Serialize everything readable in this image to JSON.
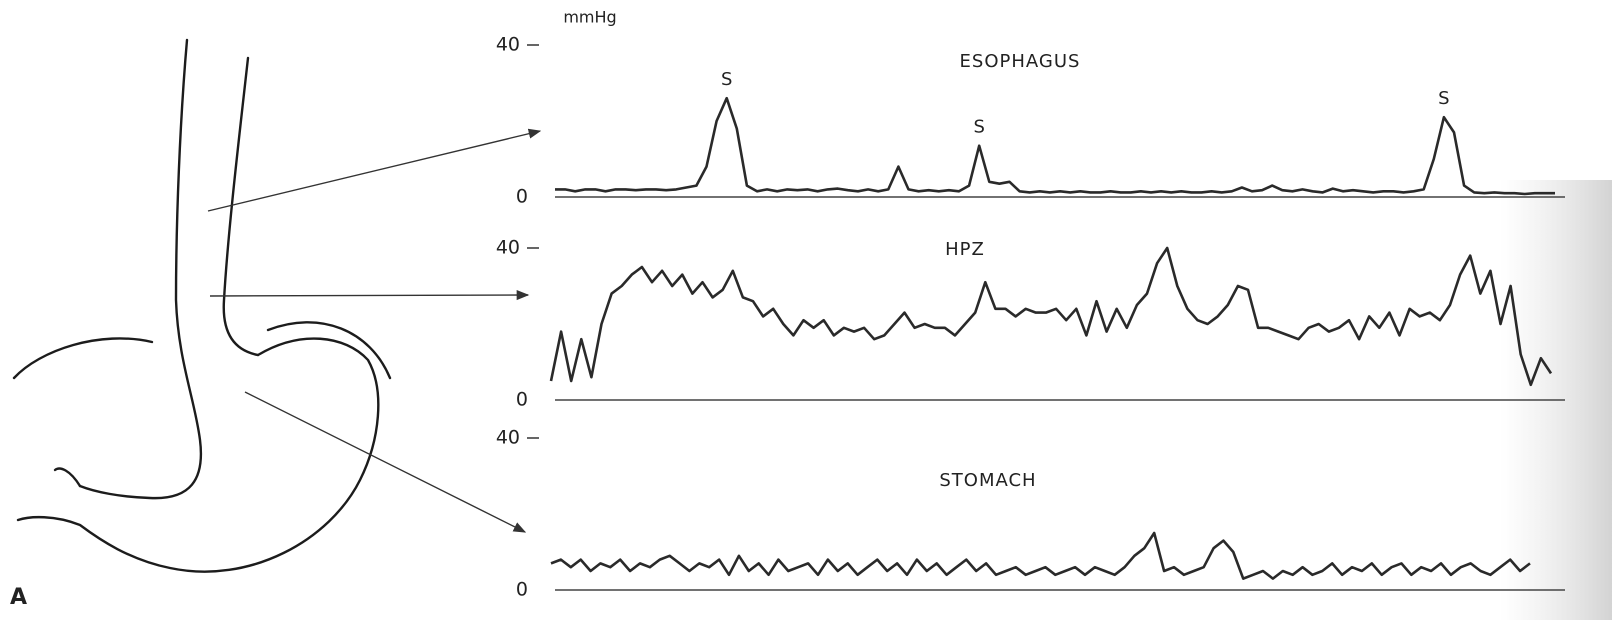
{
  "panel_label": "A",
  "chart_data": [
    {
      "type": "line",
      "title": "ESOPHAGUS",
      "ylabel": "mmHg",
      "ylim": [
        0,
        40
      ],
      "yticks": [
        0,
        40
      ],
      "annotations": [
        "S",
        "S",
        "S"
      ],
      "values": [
        2,
        2,
        1.5,
        2,
        2,
        1.5,
        2,
        2,
        1.8,
        2,
        2,
        1.8,
        2,
        2.5,
        3,
        8,
        20,
        26,
        18,
        3,
        1.5,
        2,
        1.5,
        2,
        1.8,
        2,
        1.5,
        2,
        2.2,
        1.8,
        1.5,
        2,
        1.5,
        2,
        8,
        2,
        1.5,
        1.8,
        1.5,
        1.8,
        1.5,
        3,
        13.5,
        4,
        3.5,
        4,
        1.5,
        1.2,
        1.5,
        1.2,
        1.5,
        1.2,
        1.5,
        1.2,
        1.2,
        1.5,
        1.2,
        1.2,
        1.5,
        1.2,
        1.5,
        1.2,
        1.5,
        1.2,
        1.2,
        1.5,
        1.2,
        1.5,
        2.5,
        1.5,
        1.8,
        3,
        1.8,
        1.5,
        2,
        1.5,
        1.2,
        2.2,
        1.5,
        1.8,
        1.5,
        1.2,
        1.5,
        1.5,
        1.2,
        1.5,
        2,
        10,
        21,
        17,
        3,
        1.2,
        1,
        1.2,
        1,
        1,
        0.8,
        1,
        1,
        1
      ]
    },
    {
      "type": "line",
      "title": "HPZ",
      "ylim": [
        0,
        40
      ],
      "yticks": [
        0,
        40
      ],
      "values": [
        5,
        18,
        5,
        16,
        6,
        20,
        28,
        30,
        33,
        35,
        31,
        34,
        30,
        33,
        28,
        31,
        27,
        29,
        34,
        27,
        26,
        22,
        24,
        20,
        17,
        21,
        19,
        21,
        17,
        19,
        18,
        19,
        16,
        17,
        20,
        23,
        19,
        20,
        19,
        19,
        17,
        20,
        23,
        31,
        24,
        24,
        22,
        24,
        23,
        23,
        24,
        21,
        24,
        17,
        26,
        18,
        24,
        19,
        25,
        28,
        36,
        40,
        30,
        24,
        21,
        20,
        22,
        25,
        30,
        29,
        19,
        19,
        18,
        17,
        16,
        19,
        20,
        18,
        19,
        21,
        16,
        22,
        19,
        23,
        17,
        24,
        22,
        23,
        21,
        25,
        33,
        38,
        28,
        34,
        20,
        30,
        12,
        4,
        11,
        7
      ]
    },
    {
      "type": "line",
      "title": "STOMACH",
      "ylim": [
        0,
        40
      ],
      "yticks": [
        0,
        40
      ],
      "values": [
        7,
        8,
        6,
        8,
        5,
        7,
        6,
        8,
        5,
        7,
        6,
        8,
        9,
        7,
        5,
        7,
        6,
        8,
        4,
        9,
        5,
        7,
        4,
        8,
        5,
        6,
        7,
        4,
        8,
        5,
        7,
        4,
        6,
        8,
        5,
        7,
        4,
        8,
        5,
        7,
        4,
        6,
        8,
        5,
        7,
        4,
        5,
        6,
        4,
        5,
        6,
        4,
        5,
        6,
        4,
        6,
        5,
        4,
        6,
        9,
        11,
        15,
        5,
        6,
        4,
        5,
        6,
        11,
        13,
        10,
        3,
        4,
        5,
        3,
        5,
        4,
        6,
        4,
        5,
        7,
        4,
        6,
        5,
        7,
        4,
        6,
        7,
        4,
        6,
        5,
        7,
        4,
        6,
        7,
        5,
        4,
        6,
        8,
        5,
        7
      ]
    }
  ]
}
